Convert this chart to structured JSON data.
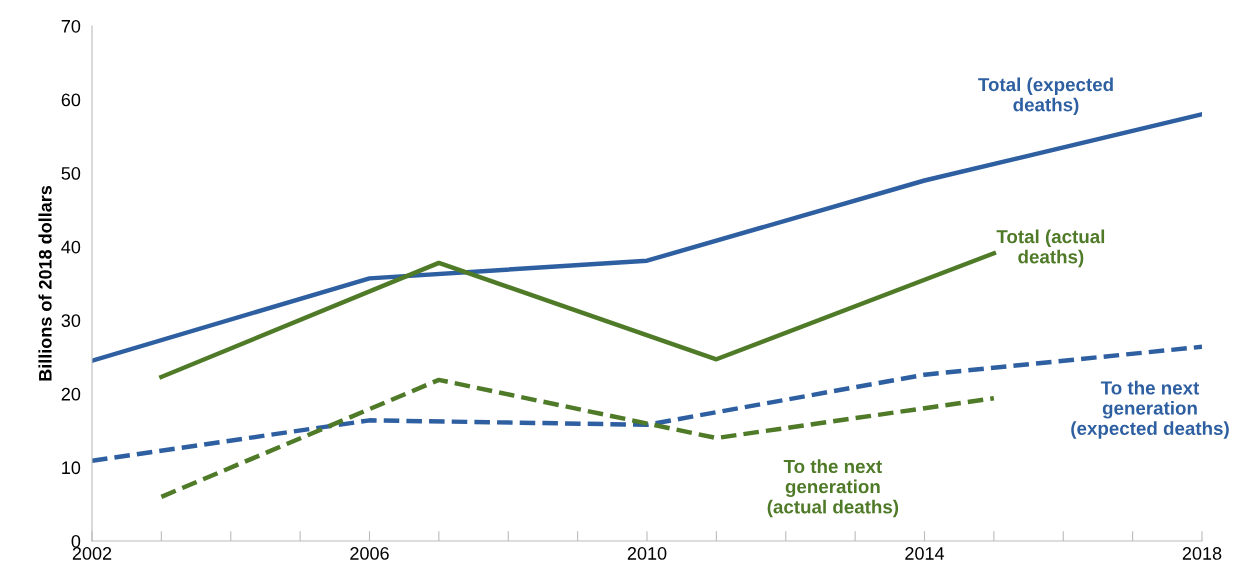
{
  "chart_data": {
    "type": "line",
    "ylabel": "Billions of 2018 dollars",
    "xlim": [
      2002,
      2018
    ],
    "ylim": [
      0,
      70
    ],
    "xticks": [
      2002,
      {
        "value": 2003,
        "label": null
      },
      {
        "value": 2004,
        "label": null
      },
      {
        "value": 2005,
        "label": null
      },
      2006,
      {
        "value": 2007,
        "label": null
      },
      {
        "value": 2008,
        "label": null
      },
      {
        "value": 2009,
        "label": null
      },
      2010,
      {
        "value": 2011,
        "label": null
      },
      {
        "value": 2012,
        "label": null
      },
      {
        "value": 2013,
        "label": null
      },
      2014,
      {
        "value": 2015,
        "label": null
      },
      {
        "value": 2016,
        "label": null
      },
      {
        "value": 2017,
        "label": null
      },
      2018
    ],
    "yticks": [
      0,
      10,
      20,
      30,
      40,
      50,
      60,
      70
    ],
    "grid": false,
    "legend": false,
    "marker": "none",
    "series": [
      {
        "name": "Total (expected\ndeaths)",
        "color": "#2e5fa1",
        "line_style": "solid",
        "x": [
          2002,
          2006,
          2010,
          2014,
          2018
        ],
        "values": [
          24.5,
          35.7,
          38.1,
          49,
          58
        ]
      },
      {
        "name": "Total (actual\ndeaths)",
        "color": "#4f7a28",
        "line_style": "solid",
        "x": [
          2003,
          2007,
          2011,
          2015
        ],
        "values": [
          22.3,
          37.8,
          24.7,
          39.1
        ]
      },
      {
        "name": "To the next\ngeneration\n(expected deaths)",
        "color": "#2e5fa1",
        "line_style": "dashed",
        "x": [
          2002,
          2006,
          2010,
          2014,
          2018
        ],
        "values": [
          10.9,
          16.4,
          15.8,
          22.6,
          26.4
        ]
      },
      {
        "name": "To the next\ngeneration\n(actual deaths)",
        "color": "#4f7a28",
        "line_style": "dashed",
        "x": [
          2003,
          2007,
          2011,
          2015
        ],
        "values": [
          6,
          21.9,
          14,
          19.4
        ]
      }
    ]
  }
}
